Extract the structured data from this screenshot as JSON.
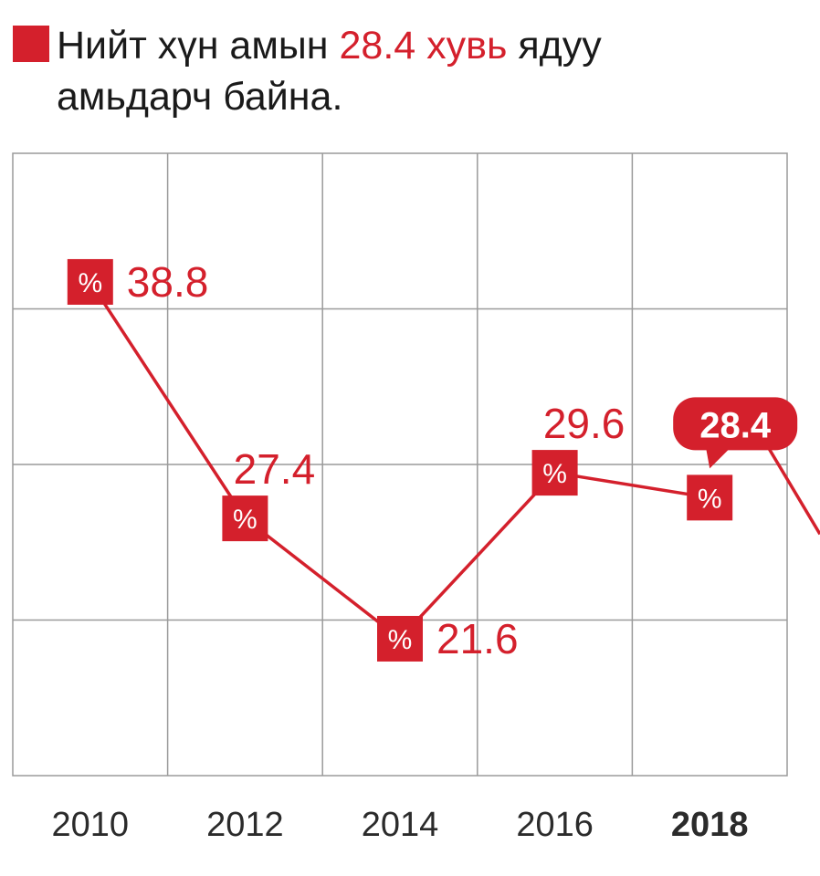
{
  "title": {
    "pre": "Нийт хүн амын ",
    "highlight": "28.4 хувь",
    "post": " ядуу",
    "line2": "амьдарч байна."
  },
  "colors": {
    "accent": "#d4202c",
    "grid": "#9a9a9a",
    "text": "#1a1a1a"
  },
  "marker_symbol": "%",
  "chart_data": {
    "type": "line",
    "categories": [
      "2010",
      "2012",
      "2014",
      "2016",
      "2018"
    ],
    "values": [
      38.8,
      27.4,
      21.6,
      29.6,
      28.4
    ],
    "value_labels": [
      "38.8",
      "27.4",
      "21.6",
      "29.6",
      "28.4"
    ],
    "highlight_category": "2018",
    "ylim": [
      15,
      45
    ],
    "grid": true,
    "legend": "none"
  }
}
